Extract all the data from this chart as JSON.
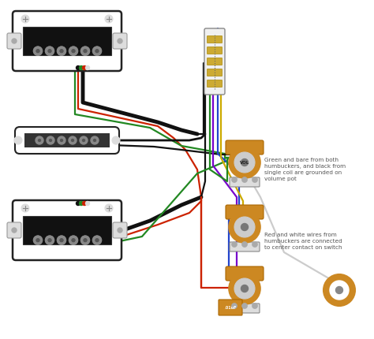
{
  "bg_color": "#ffffff",
  "annotation1": "Green and bare from both\nhumbuckers, and black from\nsingle coil are grounded on\nvolume pot",
  "annotation2": "Red and white wires from\nhumbuckers are connected\nto center contact on switch",
  "vol_label": "VOL",
  "wire_black": "#111111",
  "wire_red": "#cc2200",
  "wire_green": "#228822",
  "wire_white": "#dddddd",
  "wire_blue": "#2244cc",
  "wire_yellow": "#ccaa00",
  "wire_purple": "#7700cc",
  "pot_orange": "#cc8822",
  "pot_edge": "#aa6600",
  "pot_inner": "#cccccc",
  "switch_bg": "#dddddd",
  "switch_edge": "#888888",
  "switch_gold": "#ccaa33"
}
